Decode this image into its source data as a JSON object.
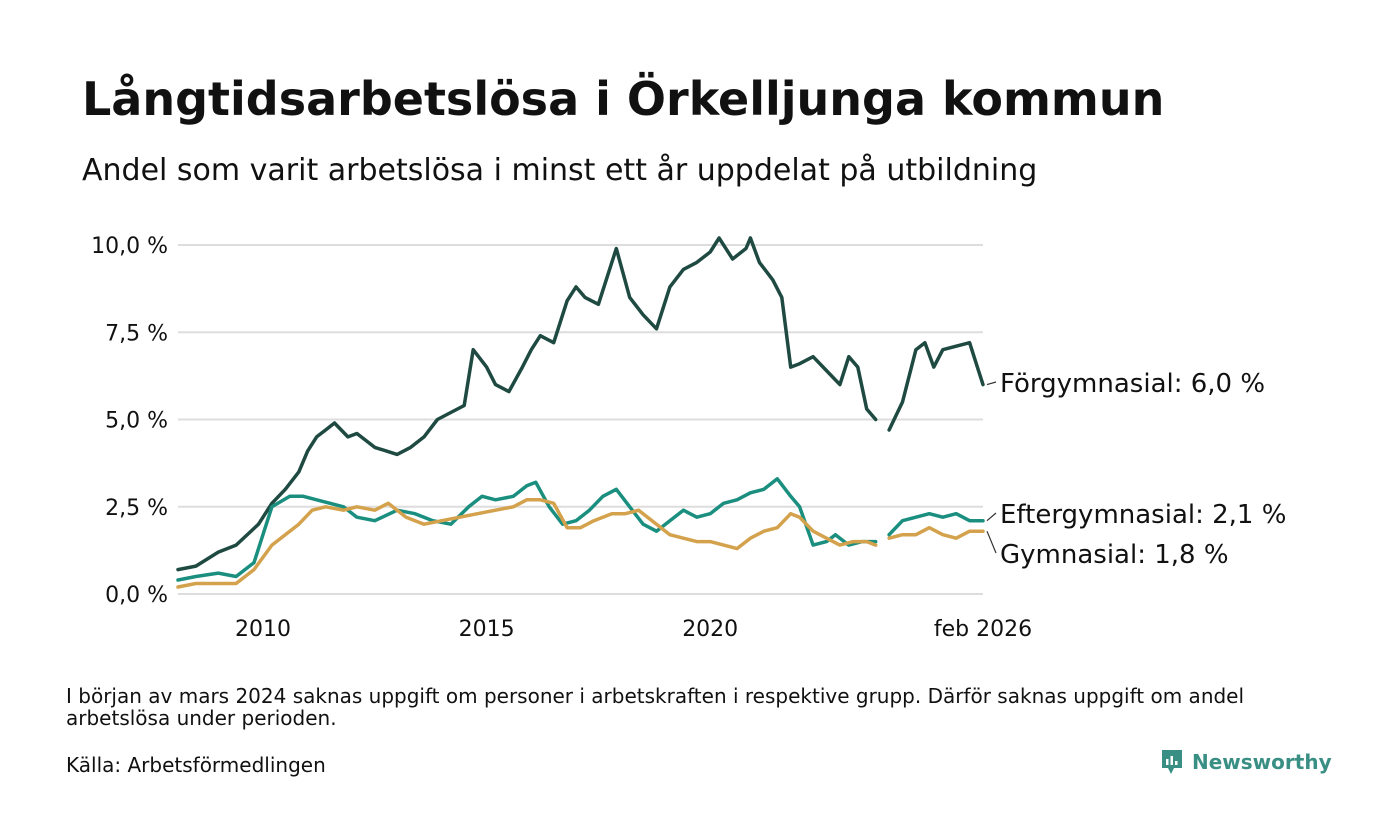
{
  "title": "Långtidsarbetslösa i Örkelljunga kommun",
  "subtitle": "Andel som varit arbetslösa i minst ett år uppdelat på utbildning",
  "note": "I början av mars 2024 saknas uppgift om personer i arbetskraften i respektive grupp. Därför saknas uppgift om andel arbetslösa under perioden.",
  "source": "Källa: Arbetsförmedlingen",
  "brand": "Newsworthy",
  "colors": {
    "forgymnasial": "#1f4a42",
    "eftergymnasial": "#1b8f7f",
    "gymnasial": "#d4a24c",
    "grid": "#dddddd",
    "brand": "#3a8f84"
  },
  "chart_data": {
    "type": "line",
    "title": "Långtidsarbetslösa i Örkelljunga kommun",
    "xlabel": "",
    "ylabel": "",
    "ylim": [
      0,
      10
    ],
    "xlim": [
      2008.1,
      2026.1
    ],
    "y_ticks": [
      0,
      2.5,
      5,
      7.5,
      10
    ],
    "y_tick_labels": [
      "0,0 %",
      "2,5 %",
      "5,0 %",
      "7,5 %",
      "10,0 %"
    ],
    "x_ticks": [
      2010,
      2015,
      2020,
      2026.1
    ],
    "x_tick_labels": [
      "2010",
      "2015",
      "2020",
      "feb 2026"
    ],
    "gap": [
      2023.75,
      2024.0
    ],
    "series": [
      {
        "name": "Förgymnasial",
        "label": "Förgymnasial: 6,0 %",
        "color": "#1f4a42",
        "x": [
          2008.1,
          2008.5,
          2009.0,
          2009.4,
          2009.9,
          2010.2,
          2010.5,
          2010.8,
          2011.0,
          2011.2,
          2011.4,
          2011.6,
          2011.9,
          2012.1,
          2012.5,
          2013.0,
          2013.3,
          2013.6,
          2013.9,
          2014.2,
          2014.5,
          2014.7,
          2015.0,
          2015.2,
          2015.5,
          2015.8,
          2016.0,
          2016.2,
          2016.5,
          2016.8,
          2017.0,
          2017.2,
          2017.5,
          2017.9,
          2018.2,
          2018.5,
          2018.8,
          2019.1,
          2019.4,
          2019.7,
          2020.0,
          2020.2,
          2020.5,
          2020.8,
          2020.9,
          2021.1,
          2021.4,
          2021.6,
          2021.8,
          2022.0,
          2022.3,
          2022.6,
          2022.9,
          2023.1,
          2023.3,
          2023.5,
          2023.7,
          2024.0,
          2024.3,
          2024.6,
          2024.8,
          2025.0,
          2025.2,
          2025.5,
          2025.8,
          2026.0,
          2026.1
        ],
        "y": [
          0.7,
          0.8,
          1.2,
          1.4,
          2.0,
          2.6,
          3.0,
          3.5,
          4.1,
          4.5,
          4.7,
          4.9,
          4.5,
          4.6,
          4.2,
          4.0,
          4.2,
          4.5,
          5.0,
          5.2,
          5.4,
          7.0,
          6.5,
          6.0,
          5.8,
          6.5,
          7.0,
          7.4,
          7.2,
          8.4,
          8.8,
          8.5,
          8.3,
          9.9,
          8.5,
          8.0,
          7.6,
          8.8,
          9.3,
          9.5,
          9.8,
          10.2,
          9.6,
          9.9,
          10.2,
          9.5,
          9.0,
          8.5,
          6.5,
          6.6,
          6.8,
          6.4,
          6.0,
          6.8,
          6.5,
          5.3,
          5.0,
          4.7,
          5.5,
          7.0,
          7.2,
          6.5,
          7.0,
          7.1,
          7.2,
          6.4,
          6.0
        ]
      },
      {
        "name": "Eftergymnasial",
        "label": "Eftergymnasial: 2,1 %",
        "color": "#1b8f7f",
        "x": [
          2008.1,
          2008.5,
          2009.0,
          2009.4,
          2009.8,
          2010.2,
          2010.6,
          2010.9,
          2011.2,
          2011.5,
          2011.8,
          2012.1,
          2012.5,
          2013.0,
          2013.4,
          2013.8,
          2014.2,
          2014.6,
          2014.9,
          2015.2,
          2015.6,
          2015.9,
          2016.1,
          2016.4,
          2016.7,
          2017.0,
          2017.3,
          2017.6,
          2017.9,
          2018.2,
          2018.5,
          2018.8,
          2019.1,
          2019.4,
          2019.7,
          2020.0,
          2020.3,
          2020.6,
          2020.9,
          2021.2,
          2021.5,
          2021.8,
          2022.0,
          2022.3,
          2022.6,
          2022.8,
          2023.1,
          2023.4,
          2023.7,
          2024.0,
          2024.3,
          2024.6,
          2024.9,
          2025.2,
          2025.5,
          2025.8,
          2026.1
        ],
        "y": [
          0.4,
          0.5,
          0.6,
          0.5,
          0.9,
          2.5,
          2.8,
          2.8,
          2.7,
          2.6,
          2.5,
          2.2,
          2.1,
          2.4,
          2.3,
          2.1,
          2.0,
          2.5,
          2.8,
          2.7,
          2.8,
          3.1,
          3.2,
          2.5,
          2.0,
          2.1,
          2.4,
          2.8,
          3.0,
          2.5,
          2.0,
          1.8,
          2.1,
          2.4,
          2.2,
          2.3,
          2.6,
          2.7,
          2.9,
          3.0,
          3.3,
          2.8,
          2.5,
          1.4,
          1.5,
          1.7,
          1.4,
          1.5,
          1.5,
          1.7,
          2.1,
          2.2,
          2.3,
          2.2,
          2.3,
          2.1,
          2.1
        ]
      },
      {
        "name": "Gymnasial",
        "label": "Gymnasial: 1,8 %",
        "color": "#d4a24c",
        "x": [
          2008.1,
          2008.5,
          2009.0,
          2009.4,
          2009.8,
          2010.2,
          2010.5,
          2010.8,
          2011.1,
          2011.4,
          2011.8,
          2012.1,
          2012.5,
          2012.8,
          2013.2,
          2013.6,
          2014.0,
          2014.4,
          2014.8,
          2015.2,
          2015.6,
          2015.9,
          2016.2,
          2016.5,
          2016.8,
          2017.1,
          2017.4,
          2017.8,
          2018.1,
          2018.4,
          2018.8,
          2019.1,
          2019.4,
          2019.7,
          2020.0,
          2020.3,
          2020.6,
          2020.9,
          2021.2,
          2021.5,
          2021.8,
          2022.0,
          2022.3,
          2022.6,
          2022.9,
          2023.2,
          2023.5,
          2023.7,
          2024.0,
          2024.3,
          2024.6,
          2024.9,
          2025.2,
          2025.5,
          2025.8,
          2026.1
        ],
        "y": [
          0.2,
          0.3,
          0.3,
          0.3,
          0.7,
          1.4,
          1.7,
          2.0,
          2.4,
          2.5,
          2.4,
          2.5,
          2.4,
          2.6,
          2.2,
          2.0,
          2.1,
          2.2,
          2.3,
          2.4,
          2.5,
          2.7,
          2.7,
          2.6,
          1.9,
          1.9,
          2.1,
          2.3,
          2.3,
          2.4,
          2.0,
          1.7,
          1.6,
          1.5,
          1.5,
          1.4,
          1.3,
          1.6,
          1.8,
          1.9,
          2.3,
          2.2,
          1.8,
          1.6,
          1.4,
          1.5,
          1.5,
          1.4,
          1.6,
          1.7,
          1.7,
          1.9,
          1.7,
          1.6,
          1.8,
          1.8
        ]
      }
    ]
  }
}
